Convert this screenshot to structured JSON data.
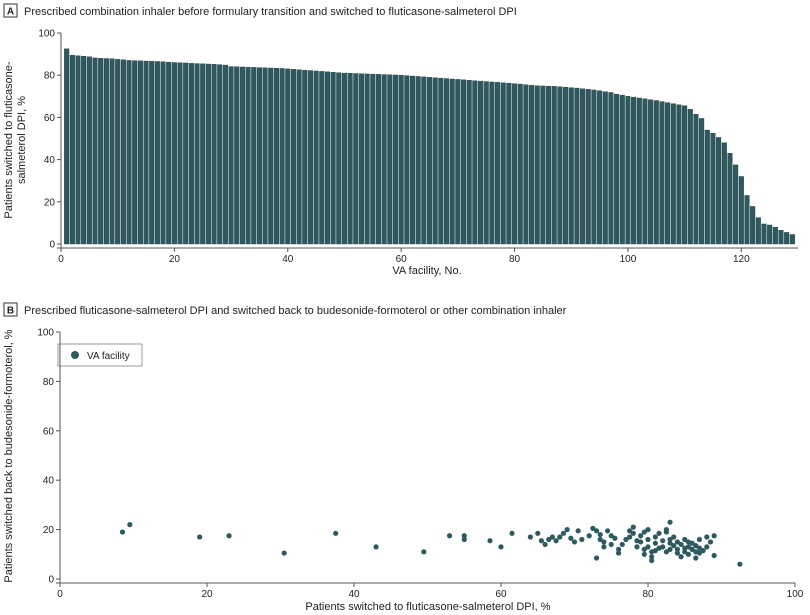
{
  "chart_data": [
    {
      "type": "bar",
      "panel_label": "A",
      "title": "Prescribed combination inhaler before formulary transition and switched to fluticasone-salmeterol DPI",
      "xlabel": "VA facility, No.",
      "ylabel_lines": [
        "Patients switched to fluticasone-",
        "salmeterol DPI, %"
      ],
      "xlim": [
        0,
        130
      ],
      "ylim": [
        0,
        100
      ],
      "xticks": [
        0,
        20,
        40,
        60,
        80,
        100,
        120
      ],
      "yticks": [
        0,
        20,
        40,
        60,
        80,
        100
      ],
      "color": "#2E5A5F",
      "x": [
        1,
        2,
        3,
        4,
        5,
        6,
        7,
        8,
        9,
        10,
        11,
        12,
        13,
        14,
        15,
        16,
        17,
        18,
        19,
        20,
        21,
        22,
        23,
        24,
        25,
        26,
        27,
        28,
        29,
        30,
        31,
        32,
        33,
        34,
        35,
        36,
        37,
        38,
        39,
        40,
        41,
        42,
        43,
        44,
        45,
        46,
        47,
        48,
        49,
        50,
        51,
        52,
        53,
        54,
        55,
        56,
        57,
        58,
        59,
        60,
        61,
        62,
        63,
        64,
        65,
        66,
        67,
        68,
        69,
        70,
        71,
        72,
        73,
        74,
        75,
        76,
        77,
        78,
        79,
        80,
        81,
        82,
        83,
        84,
        85,
        86,
        87,
        88,
        89,
        90,
        91,
        92,
        93,
        94,
        95,
        96,
        97,
        98,
        99,
        100,
        101,
        102,
        103,
        104,
        105,
        106,
        107,
        108,
        109,
        110,
        111,
        112,
        113,
        114,
        115,
        116,
        117,
        118,
        119,
        120,
        121,
        122,
        123,
        124,
        125,
        126,
        127,
        128,
        129
      ],
      "values": [
        92.5,
        89.5,
        89.2,
        89.0,
        88.7,
        88.2,
        88.0,
        87.9,
        87.8,
        87.5,
        87.3,
        87.0,
        86.9,
        86.8,
        86.7,
        86.6,
        86.5,
        86.4,
        86.2,
        86.0,
        85.9,
        85.8,
        85.6,
        85.5,
        85.4,
        85.3,
        85.2,
        85.0,
        84.8,
        84.1,
        84.0,
        83.9,
        83.8,
        83.7,
        83.6,
        83.5,
        83.4,
        83.3,
        83.2,
        83.0,
        82.8,
        82.6,
        82.4,
        82.2,
        82.0,
        81.8,
        81.6,
        81.4,
        81.2,
        81.0,
        80.9,
        80.8,
        80.7,
        80.6,
        80.5,
        80.4,
        80.3,
        80.2,
        80.1,
        80.0,
        79.8,
        79.6,
        79.4,
        79.2,
        79.0,
        78.8,
        78.6,
        78.4,
        78.2,
        78.0,
        77.8,
        77.6,
        77.4,
        77.2,
        77.0,
        76.8,
        76.6,
        76.4,
        76.2,
        76.0,
        75.8,
        75.5,
        75.2,
        75.0,
        74.9,
        74.8,
        74.7,
        74.5,
        74.3,
        74.1,
        73.9,
        73.6,
        73.3,
        73.0,
        72.6,
        72.2,
        71.8,
        71.0,
        70.5,
        70.0,
        69.6,
        69.2,
        68.8,
        68.4,
        68.0,
        67.5,
        67.0,
        66.5,
        66.0,
        65.5,
        63.8,
        61.5,
        59.5,
        54.0,
        52.5,
        50.5,
        48.0,
        43.0,
        37.5,
        32.0,
        23.0,
        17.8,
        12.5,
        9.5,
        9.0,
        8.0,
        6.5,
        5.5,
        4.5
      ]
    },
    {
      "type": "scatter",
      "panel_label": "B",
      "title": "Prescribed fluticasone-salmeterol DPI and switched back to budesonide-formoterol or other combination inhaler",
      "xlabel": "Patients switched to fluticasone-salmeterol DPI, %",
      "ylabel": "Patients switched back to budesonide-formoterol, %",
      "xlim": [
        0,
        100
      ],
      "ylim": [
        0,
        100
      ],
      "xticks": [
        0,
        20,
        40,
        60,
        80,
        100
      ],
      "yticks": [
        0,
        20,
        40,
        60,
        80,
        100
      ],
      "legend": "VA facility",
      "legend_position": "top-left",
      "color": "#2E5A5F",
      "points": [
        [
          8.5,
          19
        ],
        [
          9.5,
          22
        ],
        [
          19,
          17
        ],
        [
          23,
          17.5
        ],
        [
          30.5,
          10.5
        ],
        [
          37.5,
          18.5
        ],
        [
          43,
          13
        ],
        [
          49.5,
          11
        ],
        [
          53,
          17.5
        ],
        [
          55,
          17.5
        ],
        [
          55,
          16
        ],
        [
          58.5,
          15.5
        ],
        [
          60,
          13
        ],
        [
          61.5,
          18.5
        ],
        [
          64,
          17
        ],
        [
          65,
          18.5
        ],
        [
          65.5,
          15.5
        ],
        [
          66.5,
          16
        ],
        [
          66,
          14
        ],
        [
          67,
          17
        ],
        [
          67.5,
          15.5
        ],
        [
          68,
          17
        ],
        [
          68.5,
          18.5
        ],
        [
          69,
          20
        ],
        [
          69.5,
          16.5
        ],
        [
          70,
          15
        ],
        [
          70.5,
          19.5
        ],
        [
          71,
          16
        ],
        [
          72,
          17.5
        ],
        [
          72.5,
          20.5
        ],
        [
          73,
          19.5
        ],
        [
          73.5,
          18
        ],
        [
          73.5,
          16
        ],
        [
          74,
          15
        ],
        [
          74,
          13
        ],
        [
          74.5,
          19.5
        ],
        [
          75,
          17.5
        ],
        [
          75,
          14
        ],
        [
          75.5,
          16.5
        ],
        [
          76,
          12
        ],
        [
          76,
          10.5
        ],
        [
          76.5,
          14
        ],
        [
          77,
          16
        ],
        [
          77.5,
          19.5
        ],
        [
          77.5,
          17
        ],
        [
          78,
          18.5
        ],
        [
          78,
          21
        ],
        [
          78.5,
          15.5
        ],
        [
          78.5,
          13
        ],
        [
          79,
          17.5
        ],
        [
          79,
          15
        ],
        [
          79.5,
          19
        ],
        [
          79.5,
          12
        ],
        [
          79.5,
          10
        ],
        [
          80,
          20
        ],
        [
          80,
          16
        ],
        [
          80,
          13
        ],
        [
          80.5,
          9
        ],
        [
          80.5,
          11
        ],
        [
          81,
          17
        ],
        [
          81,
          14.5
        ],
        [
          81,
          11.5
        ],
        [
          81.5,
          18.5
        ],
        [
          81.5,
          12.5
        ],
        [
          82,
          15.5
        ],
        [
          82,
          13
        ],
        [
          82.5,
          19
        ],
        [
          82.5,
          20
        ],
        [
          82.5,
          11
        ],
        [
          83,
          16
        ],
        [
          83,
          23
        ],
        [
          83,
          14.5
        ],
        [
          83,
          12
        ],
        [
          83.5,
          17
        ],
        [
          83.5,
          13.5
        ],
        [
          84,
          10.5
        ],
        [
          84,
          15
        ],
        [
          84,
          12
        ],
        [
          84.5,
          14
        ],
        [
          84.5,
          9
        ],
        [
          85,
          12.5
        ],
        [
          85,
          16
        ],
        [
          85,
          11
        ],
        [
          85.5,
          13
        ],
        [
          85.5,
          10
        ],
        [
          85.5,
          15
        ],
        [
          86,
          12
        ],
        [
          86,
          14.5
        ],
        [
          86.5,
          11
        ],
        [
          86.5,
          13.5
        ],
        [
          86.5,
          8.5
        ],
        [
          87,
          12.5
        ],
        [
          87,
          10.5
        ],
        [
          87,
          16
        ],
        [
          87.5,
          11.5
        ],
        [
          88,
          17
        ],
        [
          88,
          13
        ],
        [
          88.5,
          15
        ],
        [
          89,
          17.5
        ],
        [
          89,
          9.5
        ],
        [
          92.5,
          6
        ],
        [
          73,
          8.5
        ],
        [
          80.5,
          7.5
        ]
      ]
    }
  ]
}
